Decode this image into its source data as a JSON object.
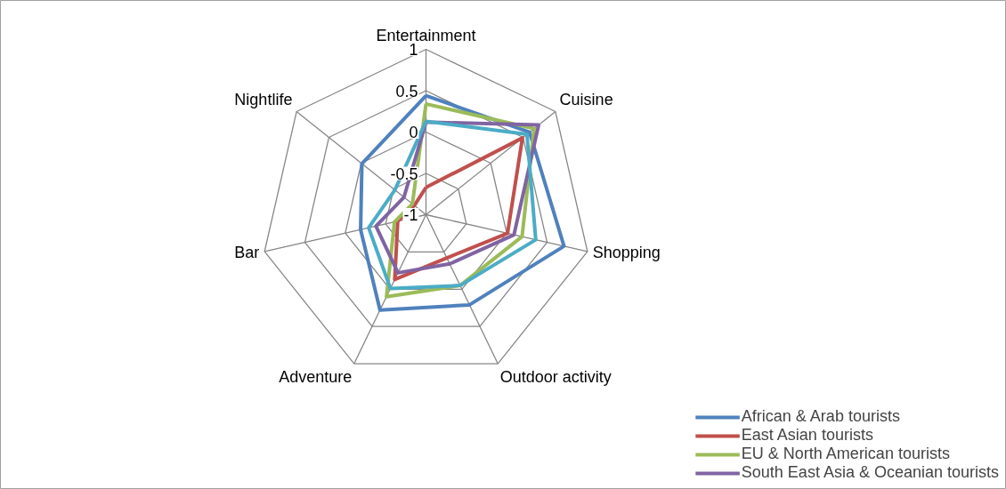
{
  "chart_data": {
    "type": "radar",
    "categories": [
      "Entertainment",
      "Cuisine",
      "Shopping",
      "Outdoor activity",
      "Adventure",
      "Bar",
      "Nightlife"
    ],
    "ylim": [
      -1,
      1
    ],
    "yticks": [
      -1,
      -0.5,
      0,
      0.5,
      1
    ],
    "grid": true,
    "legend": "bottom right",
    "series": [
      {
        "name": "African & Arab tourists",
        "color": "#4f81bd",
        "values": [
          0.44,
          0.6,
          0.71,
          0.21,
          0.28,
          -0.19,
          -0.01
        ]
      },
      {
        "name": "East Asian tourists",
        "color": "#c0504d",
        "values": [
          -0.67,
          0.49,
          0.01,
          -0.42,
          -0.13,
          -0.65,
          -0.82
        ]
      },
      {
        "name": "EU & North American tourists",
        "color": "#9bbb59",
        "values": [
          0.34,
          0.67,
          0.19,
          -0.05,
          0.1,
          -0.61,
          -0.79
        ]
      },
      {
        "name": "South East Asia & Oceanian tourists",
        "color": "#8064a2",
        "values": [
          0.12,
          0.74,
          0.09,
          -0.34,
          -0.22,
          -0.38,
          -0.66
        ]
      },
      {
        "color": "#4bacc6",
        "values": [
          0.13,
          0.56,
          0.36,
          -0.05,
          -0.01,
          -0.29,
          -0.52
        ]
      }
    ]
  }
}
